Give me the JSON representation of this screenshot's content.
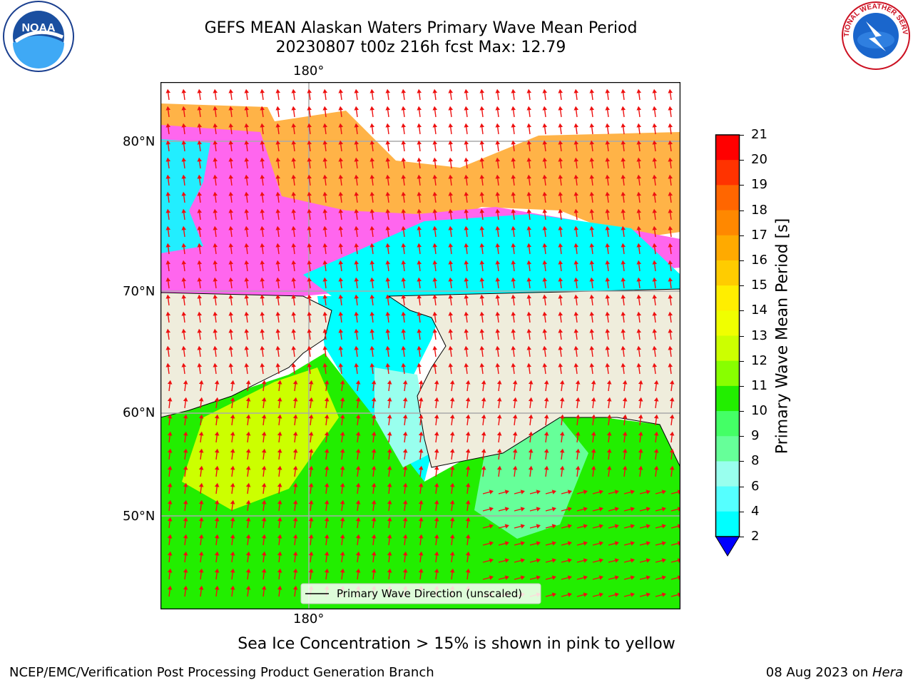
{
  "title": {
    "line1": "GEFS MEAN Alaskan Waters Primary Wave Mean Period",
    "line2": "20230807 t00z 216h fcst   Max: 12.79"
  },
  "logos": {
    "left": {
      "text": "NOAA",
      "icon": "noaa-logo"
    },
    "right": {
      "text": "NATIONAL WEATHER SERVICE",
      "icon": "nws-logo"
    }
  },
  "map": {
    "lon_label_top": "180°",
    "lon_label_bottom": "180°",
    "lat_labels": [
      "80°N",
      "70°N",
      "60°N",
      "50°N"
    ],
    "legend_text": "Primary Wave Direction (unscaled)",
    "note": "Sea Ice Concentration > 15% is shown in pink to yellow"
  },
  "colorbar": {
    "label": "Primary Wave Mean Period [s]",
    "ticks": [
      "21",
      "20",
      "19",
      "18",
      "17",
      "16",
      "15",
      "14",
      "13",
      "12",
      "11",
      "10",
      "9",
      "8",
      "6",
      "4",
      "2"
    ],
    "colors": [
      "#ff0000",
      "#ff3300",
      "#ff6600",
      "#ff8800",
      "#ffaa00",
      "#ffcc00",
      "#ffee00",
      "#f0ff00",
      "#ccff00",
      "#88ff00",
      "#22ee00",
      "#44ff66",
      "#66ff99",
      "#99ffee",
      "#55ffff",
      "#00ffff",
      "#0088ff",
      "#0000ff"
    ]
  },
  "footer": {
    "left": "NCEP/EMC/Verification Post Processing Product Generation Branch",
    "right_date": "08 Aug 2023 on ",
    "right_host": "Hera"
  }
}
